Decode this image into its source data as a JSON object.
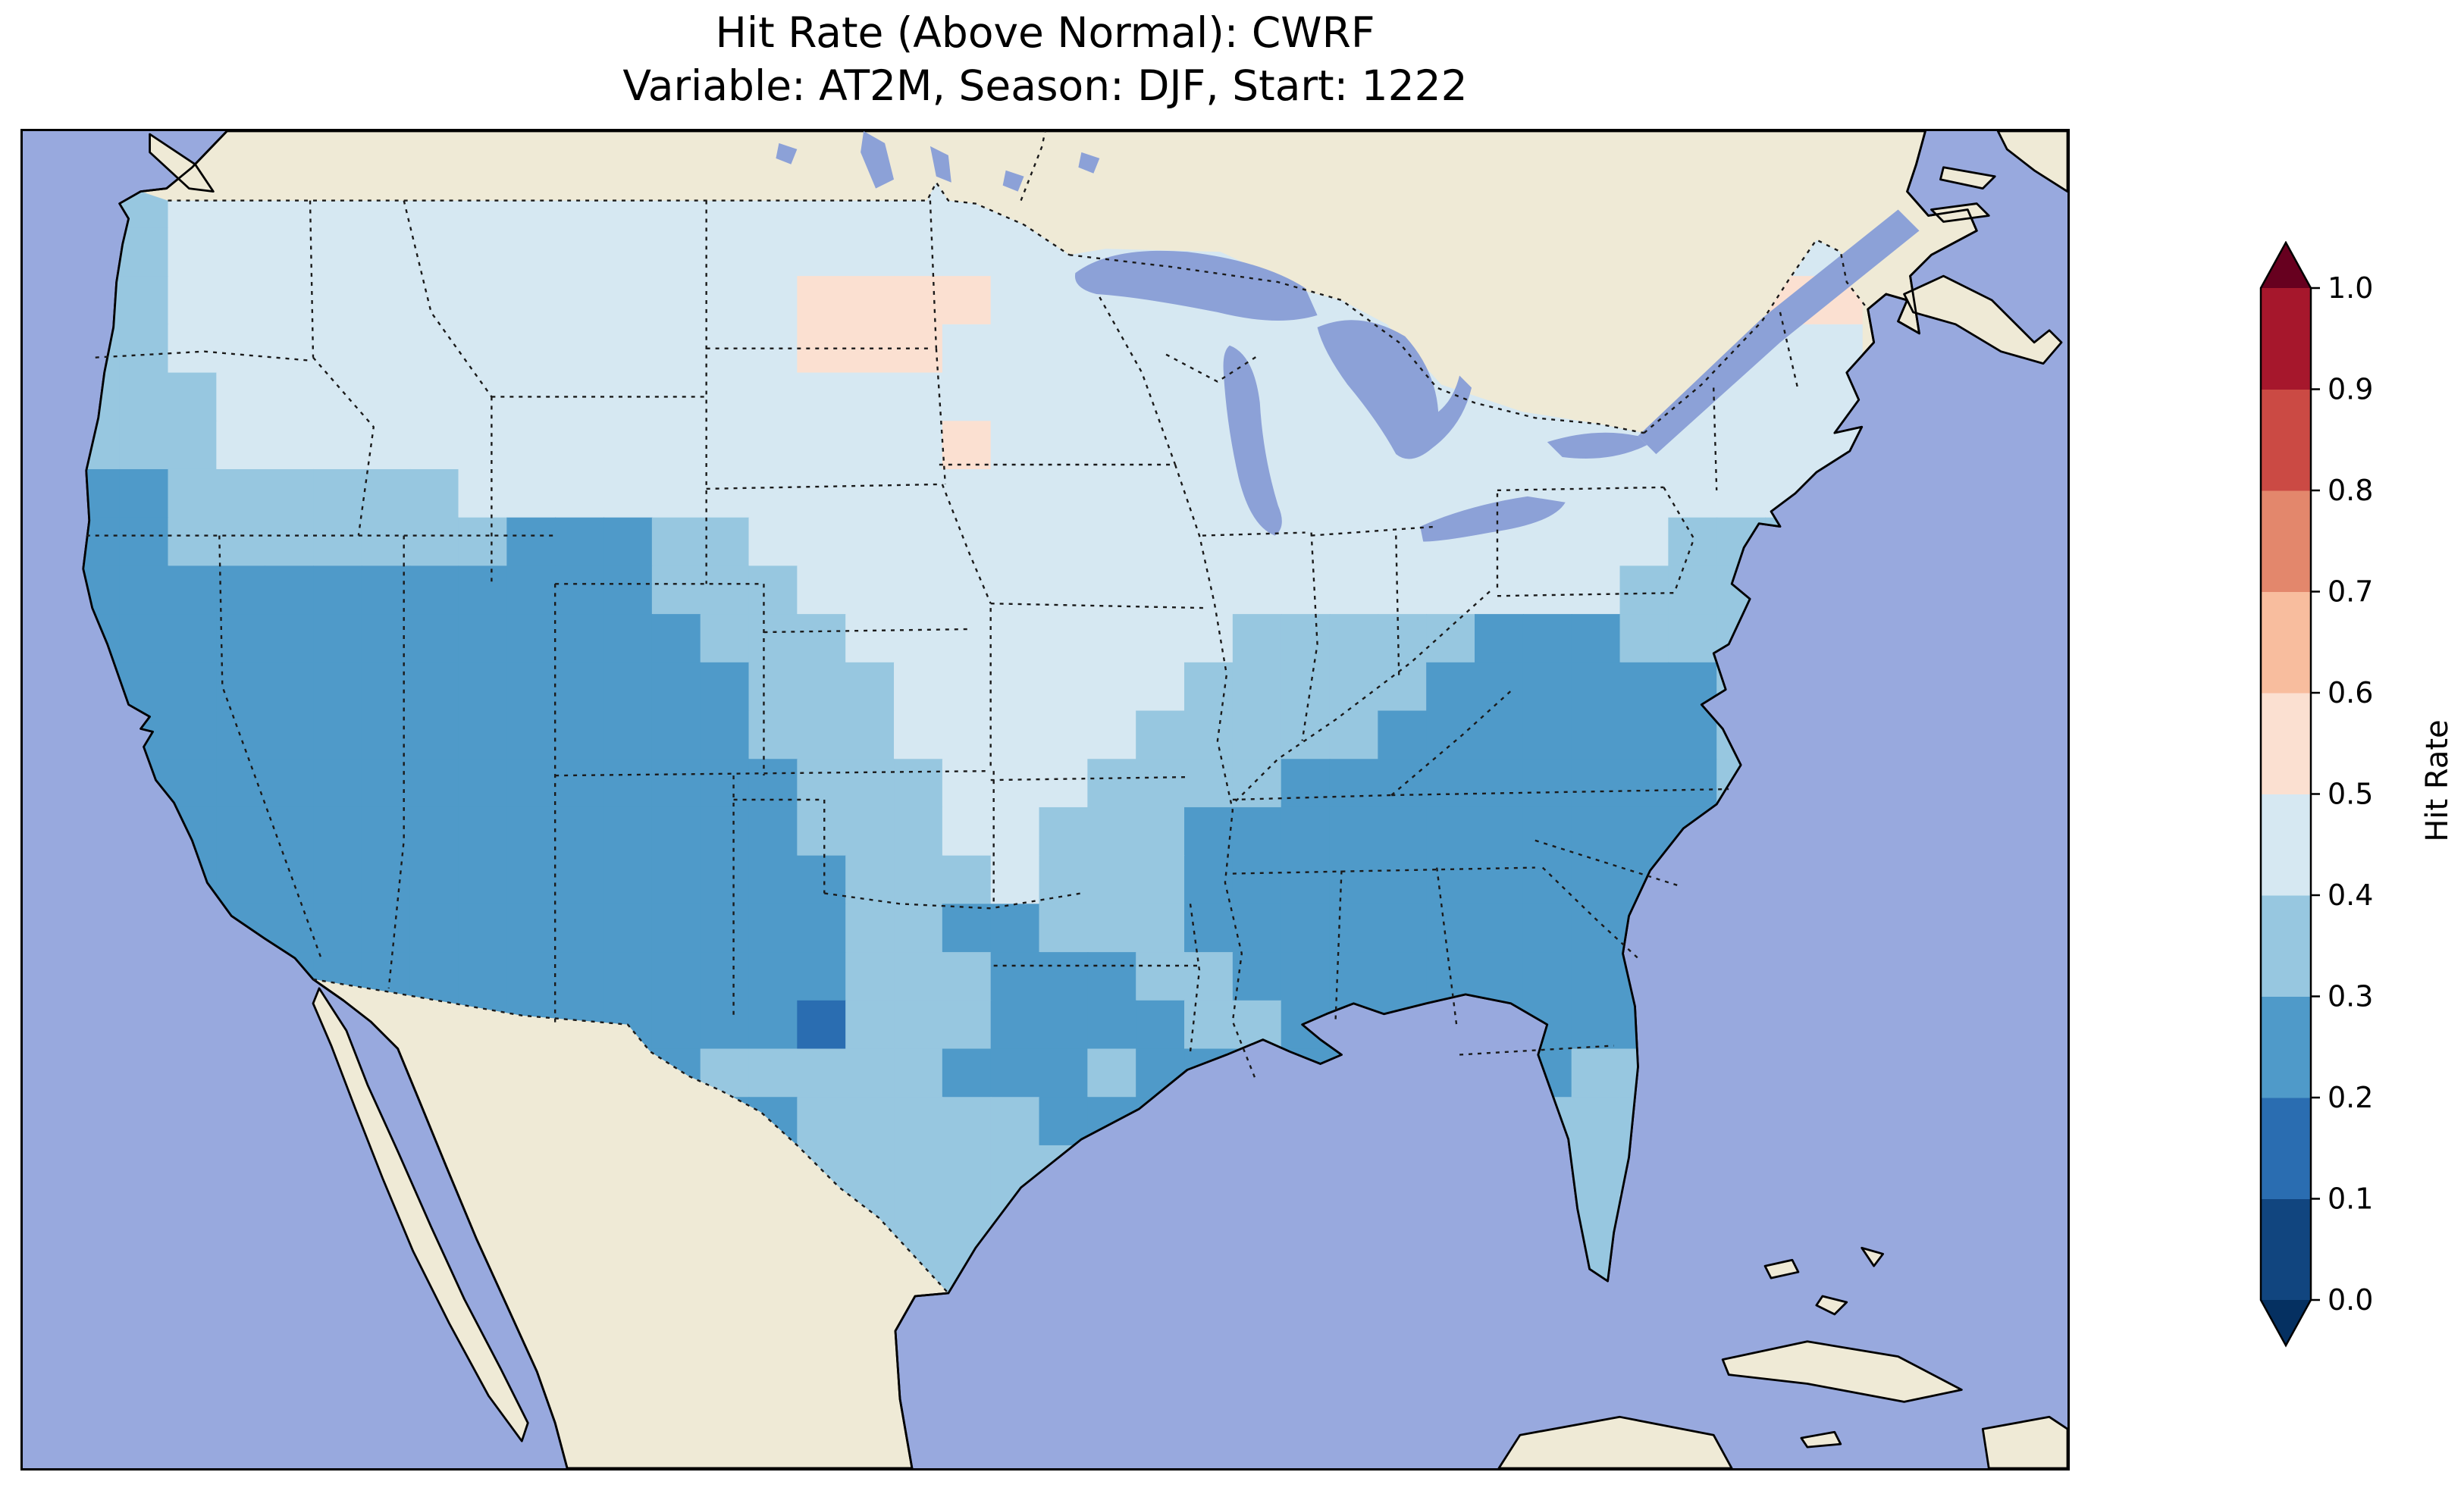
{
  "map_style": {
    "ocean_color": "#98a9de",
    "land_color": "#efead6",
    "lake_color": "#8ca1d7",
    "coast_color": "#000000",
    "border_dot_color": "#1a1a1a",
    "background_color": "#ffffff"
  },
  "chart_data": {
    "type": "heatmap",
    "title": "Hit Rate (Above Normal): CWRF",
    "subtitle": "Variable: AT2M, Season: DJF, Start: 1222",
    "region": "Contiguous United States with surrounding Canada, Mexico, Pacific, Gulf and Atlantic",
    "colorbar_label": "Hit Rate",
    "colorbar_ticks": [
      "0.0",
      "0.1",
      "0.2",
      "0.3",
      "0.4",
      "0.5",
      "0.6",
      "0.7",
      "0.8",
      "0.9",
      "1.0"
    ],
    "bin_edges": [
      0.0,
      0.1,
      0.2,
      0.3,
      0.4,
      0.5,
      0.6,
      0.7,
      0.8,
      0.9,
      1.0
    ],
    "bin_colors_low_to_high": [
      "#11457f",
      "#2a6db1",
      "#4f9ac9",
      "#97c7e0",
      "#d6e8f2",
      "#fbe0d1",
      "#f8bd9e",
      "#e3876c",
      "#cb4a44",
      "#a6172c"
    ],
    "extend_low_color": "#053061",
    "extend_high_color": "#67001f",
    "legend_position": "right",
    "grid": {
      "note": "Downsampled 37x24 grid of hit-rate bins over CONUS read from the map; code n = hit rate in [n/10,(n+1)/10).",
      "codes": {
        "1": "0.1-0.2",
        "2": "0.2-0.3",
        "3": "0.3-0.4",
        "4": "0.4-0.5",
        "5": "0.5-0.6"
      },
      "cell_size": 32,
      "rows": [
        "3344444444444444444444444444444444444",
        "3344444444444444444444444444444444444",
        "3344444444444445555444444444444444455",
        "3344444444444445554444444444444444444",
        "3334444444444444444444444444444444444",
        "3334444444444444445444444444444444444",
        "2233333344444444444444444444444444444",
        "2233333332223344444444444444444443333",
        "2222222222223334444444444444444433333",
        "2222222222222333444444443333322233333",
        "2222222222222233344444433333222222333",
        "2222222222222233344444333332222222333",
        "2222222222222223334443333222222222333",
        "2222222222222223334433322222222222333",
        "2222222222222222333433322222222223333",
        "2222222222222222332233322222222223333",
        "2222222222222222333222332222222223333",
        "2222222222222221333222233222222223333",
        "2222222222222333332223222222222333333",
        "2222222222222223333322222333333333333",
        "2222222222222223333333333333333333333",
        "2222222222222222333333333333333343333",
        "2222222222222222233333333333333333333",
        "3333333333333333333333333333333333333"
      ]
    }
  }
}
